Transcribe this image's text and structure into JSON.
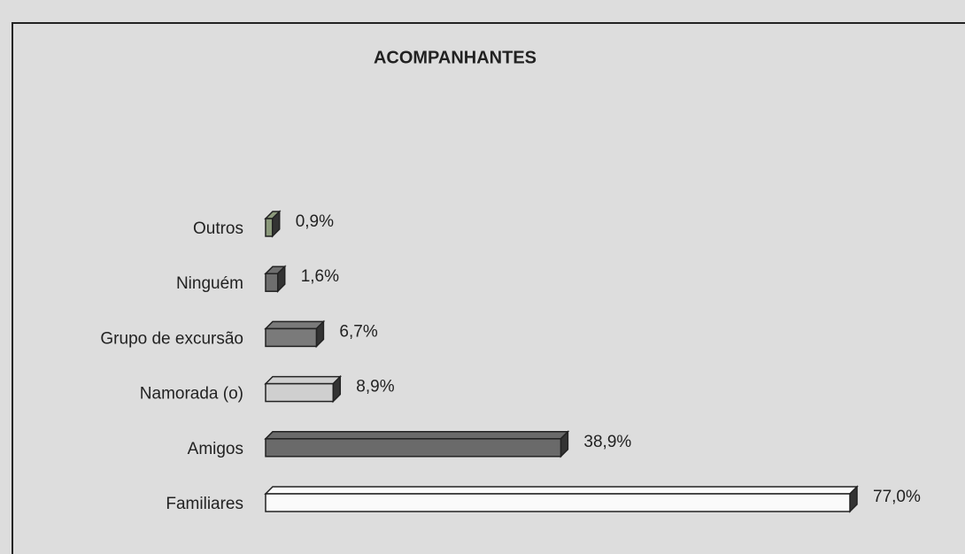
{
  "chart_data": {
    "type": "bar",
    "orientation": "horizontal",
    "title": "ACOMPANHANTES",
    "categories": [
      "Outros",
      "Ninguém",
      "Grupo de excursão",
      "Namorada (o)",
      "Amigos",
      "Familiares"
    ],
    "values": [
      0.9,
      1.6,
      6.7,
      8.9,
      38.9,
      77.0
    ],
    "value_labels": [
      "0,9%",
      "1,6%",
      "6,7%",
      "8,9%",
      "38,9%",
      "77,0%"
    ],
    "colors": [
      "#8c9a7c",
      "#6e6e6e",
      "#7a7a7a",
      "#cfcfcf",
      "#6a6a6a",
      "#fafafa"
    ]
  }
}
